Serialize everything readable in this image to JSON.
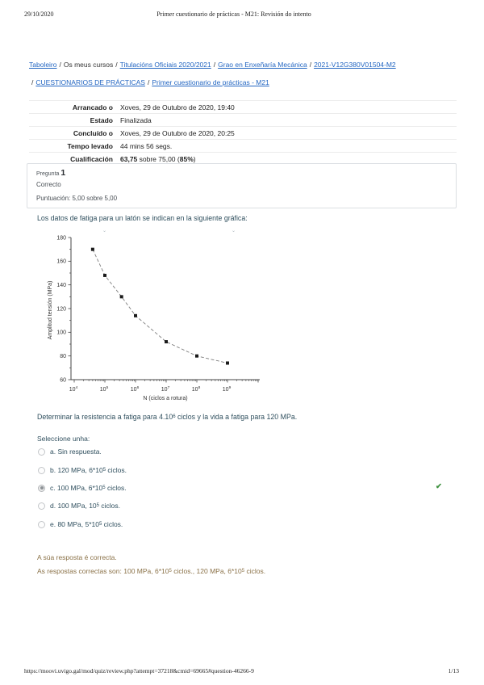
{
  "page": {
    "print_date": "29/10/2020",
    "print_title": "Primer cuestionario de prácticas - M21: Revisión do intento",
    "footer_url": "https://moovi.uvigo.gal/mod/quiz/review.php?attempt=37218&cmid=69665#question-46266-9",
    "footer_page": "1/13",
    "crop_mark": "⌄"
  },
  "breadcrumb": {
    "separator": "/",
    "items": [
      {
        "label": "Taboleiro",
        "link": true
      },
      {
        "label": "Os meus cursos",
        "link": false
      },
      {
        "label": "Titulacións Oficiais 2020/2021",
        "link": true
      },
      {
        "label": "Grao en Enxeñaría Mecánica",
        "link": true
      },
      {
        "label": "2021-V12G380V01504-M2",
        "link": true
      },
      {
        "label": "CUESTIONARIOS DE PRÁCTICAS",
        "link": true
      },
      {
        "label": "Primer cuestionario de prácticas - M21",
        "link": true
      }
    ]
  },
  "summary": {
    "rows": [
      {
        "label": "Arrancado o",
        "value": "Xoves, 29 de Outubro de 2020, 19:40"
      },
      {
        "label": "Estado",
        "value": "Finalizada"
      },
      {
        "label": "Concluído o",
        "value": "Xoves, 29 de Outubro de 2020, 20:25"
      },
      {
        "label": "Tempo levado",
        "value": "44 mins 56 segs."
      }
    ],
    "grade": {
      "label": "Cualificación",
      "score": "63,75",
      "mid": " sobre 75,00 (",
      "percent": "85%",
      "close": ")"
    }
  },
  "question": {
    "number_label": "Pregunta",
    "number": "1",
    "state": "Correcto",
    "points": "Puntuación: 5,00 sobre 5,00",
    "intro": "Los datos de fatiga para un latón se indican en la siguiente gráfica:",
    "task_pre": "Determinar la resistencia a fatiga para 4.10",
    "task_sup": "6",
    "task_post": " ciclos y la vida a fatiga para 120 MPa.",
    "select_label": "Seleccione unha:",
    "check_glyph": "✔",
    "options": [
      {
        "key": "a.",
        "pre": " Sin respuesta.",
        "sup": "",
        "post": "",
        "selected": false,
        "correct": false
      },
      {
        "key": "b.",
        "pre": " 120 MPa, 6*10",
        "sup": "5",
        "post": " ciclos.",
        "selected": false,
        "correct": false
      },
      {
        "key": "c.",
        "pre": " 100 MPa, 6*10",
        "sup": "5",
        "post": " ciclos.",
        "selected": true,
        "correct": true
      },
      {
        "key": "d.",
        "pre": " 100 MPa, 10",
        "sup": "5",
        "post": " ciclos.",
        "selected": false,
        "correct": false
      },
      {
        "key": "e.",
        "pre": " 80 MPa, 5*10",
        "sup": "5",
        "post": " ciclos.",
        "selected": false,
        "correct": false
      }
    ],
    "feedback_correct": "A súa resposta é correcta.",
    "answer_pre": "As respostas correctas son: 100 MPa, 6*10",
    "answer_sup1": "5",
    "answer_mid": " ciclos., 120 MPa, 6*10",
    "answer_sup2": "5",
    "answer_post": " ciclos."
  },
  "chart_data": {
    "type": "line",
    "title": "",
    "xlabel": "N (ciclos a rotura)",
    "ylabel": "Amplitud tensión (MPa)",
    "xscale": "log",
    "x": [
      40000,
      100000,
      350000,
      1000000,
      10000000,
      100000000,
      1000000000
    ],
    "y": [
      170,
      148,
      130,
      114,
      92,
      80,
      74
    ],
    "xlim": [
      10000,
      10000000000
    ],
    "ylim": [
      60,
      180
    ],
    "yticks": [
      60,
      80,
      100,
      120,
      140,
      160,
      180
    ],
    "yticks_minor": [
      70,
      90,
      110,
      130,
      150,
      170
    ],
    "xticks_exp": [
      4,
      5,
      6,
      7,
      8,
      9
    ],
    "xtick_labels": [
      "10^4",
      "10^5",
      "10^6",
      "10^7",
      "10^8",
      "10^9"
    ],
    "marker": "black-square",
    "line_style": "dashed-gray",
    "grid": false,
    "legend": "none"
  }
}
